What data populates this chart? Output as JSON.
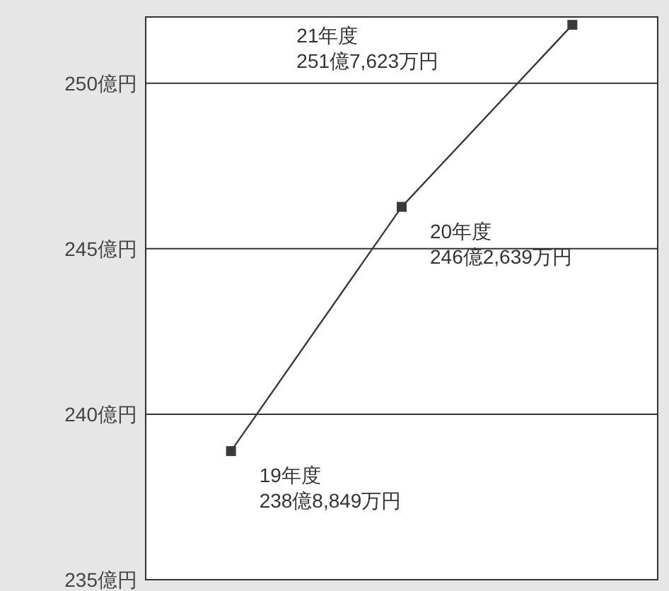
{
  "chart_data": {
    "type": "line",
    "categories": [
      null,
      null,
      null
    ],
    "series": [
      {
        "color": "#3a3a3a",
        "values": [
          238.8849,
          246.2639,
          251.7623
        ]
      }
    ],
    "ylim": [
      235,
      252
    ],
    "yticks": [
      {
        "value": 235,
        "label": "235億円"
      },
      {
        "value": 240,
        "label": "240億円"
      },
      {
        "value": 245,
        "label": "245億円"
      },
      {
        "value": 250,
        "label": "250億円"
      }
    ],
    "grid": "y",
    "marker": "square",
    "line_style": "solid",
    "tick_labels": "y",
    "annotations": [
      "19年度\n238億8,849万円",
      "20年度\n246億2,639万円",
      "21年度\n251億7,623万円"
    ]
  }
}
